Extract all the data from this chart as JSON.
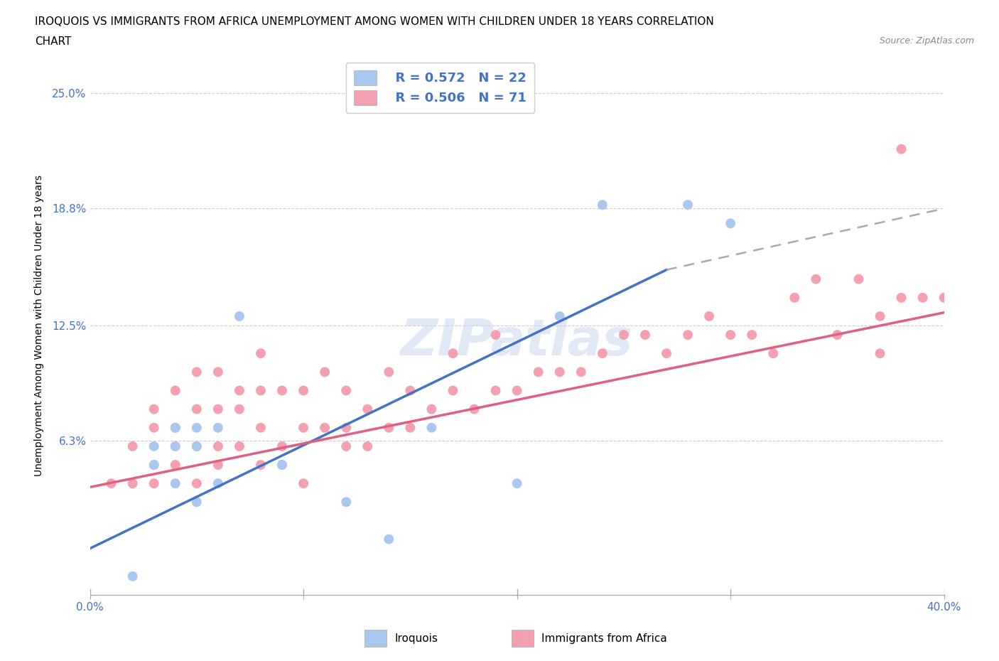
{
  "title_line1": "IROQUOIS VS IMMIGRANTS FROM AFRICA UNEMPLOYMENT AMONG WOMEN WITH CHILDREN UNDER 18 YEARS CORRELATION",
  "title_line2": "CHART",
  "source_text": "Source: ZipAtlas.com",
  "ylabel": "Unemployment Among Women with Children Under 18 years",
  "xlim": [
    0.0,
    0.4
  ],
  "ylim": [
    -0.02,
    0.27
  ],
  "yticks": [
    0.0,
    0.063,
    0.125,
    0.188,
    0.25
  ],
  "ytick_labels": [
    "",
    "6.3%",
    "12.5%",
    "18.8%",
    "25.0%"
  ],
  "xticks": [
    0.0,
    0.1,
    0.2,
    0.3,
    0.4
  ],
  "xtick_labels": [
    "0.0%",
    "",
    "",
    "",
    "40.0%"
  ],
  "watermark": "ZIPatlas",
  "legend_r1": "R = 0.572",
  "legend_n1": "N = 22",
  "legend_r2": "R = 0.506",
  "legend_n2": "N = 71",
  "color_iroquois": "#A8C8F0",
  "color_africa": "#F5A0B0",
  "color_blue_text": "#4472C4",
  "color_line_iroquois": "#4472C4",
  "color_line_africa": "#E06080",
  "background_color": "#FFFFFF",
  "iroquois_x": [
    0.02,
    0.03,
    0.03,
    0.04,
    0.04,
    0.04,
    0.05,
    0.05,
    0.05,
    0.06,
    0.06,
    0.07,
    0.09,
    0.09,
    0.12,
    0.14,
    0.16,
    0.2,
    0.22,
    0.24,
    0.28,
    0.3
  ],
  "iroquois_y": [
    -0.01,
    0.05,
    0.06,
    0.04,
    0.06,
    0.07,
    0.03,
    0.06,
    0.07,
    0.04,
    0.07,
    0.13,
    0.05,
    0.05,
    0.03,
    0.01,
    0.07,
    0.04,
    0.13,
    0.19,
    0.19,
    0.18
  ],
  "africa_x": [
    0.01,
    0.02,
    0.02,
    0.03,
    0.03,
    0.03,
    0.03,
    0.04,
    0.04,
    0.04,
    0.04,
    0.05,
    0.05,
    0.05,
    0.05,
    0.06,
    0.06,
    0.06,
    0.06,
    0.07,
    0.07,
    0.07,
    0.08,
    0.08,
    0.08,
    0.08,
    0.09,
    0.09,
    0.1,
    0.1,
    0.1,
    0.11,
    0.11,
    0.12,
    0.12,
    0.12,
    0.13,
    0.13,
    0.14,
    0.14,
    0.15,
    0.15,
    0.16,
    0.17,
    0.17,
    0.18,
    0.19,
    0.19,
    0.2,
    0.21,
    0.22,
    0.23,
    0.24,
    0.25,
    0.26,
    0.27,
    0.28,
    0.29,
    0.3,
    0.31,
    0.32,
    0.33,
    0.34,
    0.35,
    0.36,
    0.37,
    0.37,
    0.38,
    0.38,
    0.39,
    0.4
  ],
  "africa_y": [
    0.04,
    0.04,
    0.06,
    0.04,
    0.05,
    0.07,
    0.08,
    0.05,
    0.06,
    0.07,
    0.09,
    0.04,
    0.06,
    0.08,
    0.1,
    0.05,
    0.06,
    0.08,
    0.1,
    0.06,
    0.08,
    0.09,
    0.05,
    0.07,
    0.09,
    0.11,
    0.06,
    0.09,
    0.04,
    0.07,
    0.09,
    0.07,
    0.1,
    0.06,
    0.07,
    0.09,
    0.06,
    0.08,
    0.07,
    0.1,
    0.07,
    0.09,
    0.08,
    0.09,
    0.11,
    0.08,
    0.09,
    0.12,
    0.09,
    0.1,
    0.1,
    0.1,
    0.11,
    0.12,
    0.12,
    0.11,
    0.12,
    0.13,
    0.12,
    0.12,
    0.11,
    0.14,
    0.15,
    0.12,
    0.15,
    0.13,
    0.11,
    0.14,
    0.22,
    0.14,
    0.14
  ],
  "trendline_iroquois_x0": 0.0,
  "trendline_iroquois_y0": 0.005,
  "trendline_iroquois_x1": 0.27,
  "trendline_iroquois_y1": 0.155,
  "trendline_iroquois_dash_x0": 0.27,
  "trendline_iroquois_dash_y0": 0.155,
  "trendline_iroquois_dash_x1": 0.4,
  "trendline_iroquois_dash_y1": 0.188,
  "trendline_africa_x0": 0.0,
  "trendline_africa_y0": 0.038,
  "trendline_africa_x1": 0.4,
  "trendline_africa_y1": 0.132
}
